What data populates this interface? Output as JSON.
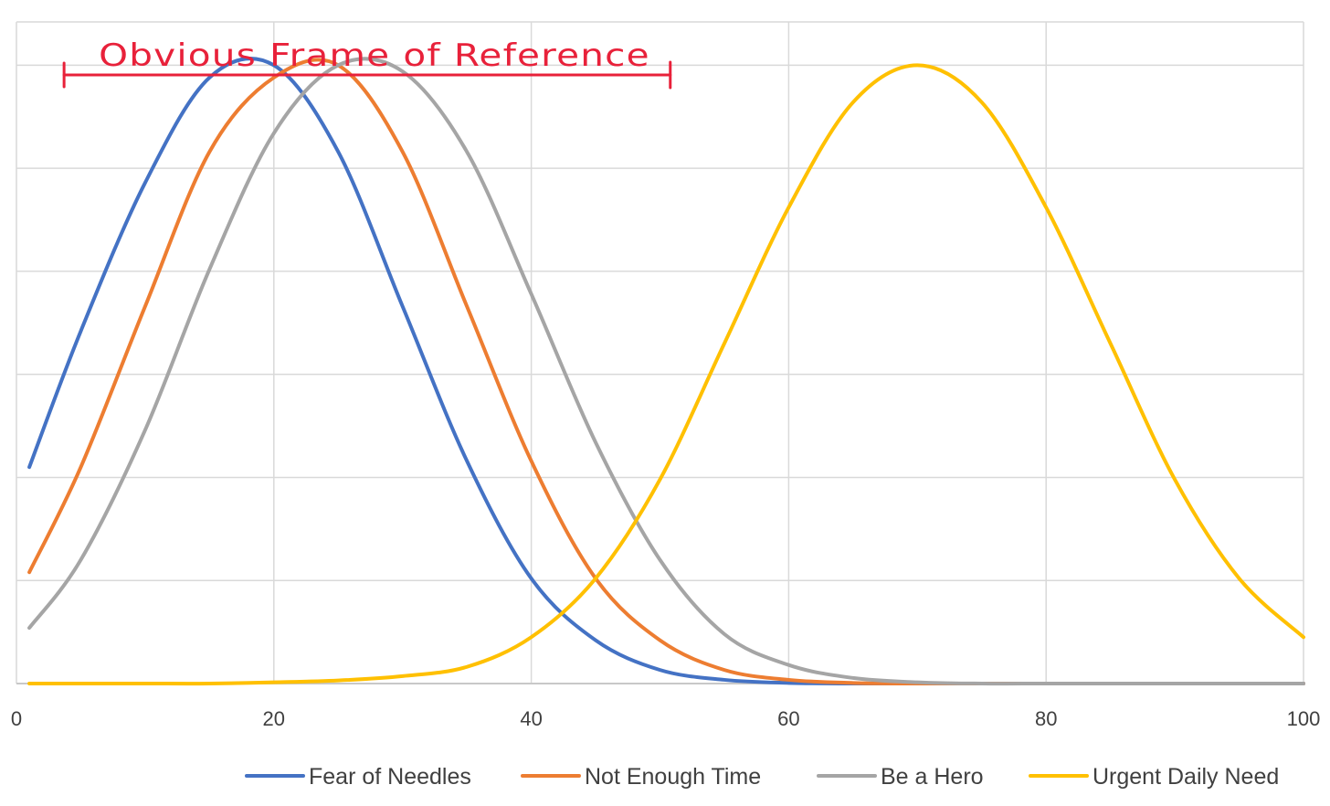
{
  "chart_data": {
    "type": "line",
    "title": "",
    "xlabel": "",
    "ylabel": "",
    "xlim": [
      0,
      100
    ],
    "ylim": [
      0,
      1.07
    ],
    "x_ticks": [
      0,
      20,
      40,
      60,
      80,
      100
    ],
    "x_tick_labels": [
      "0",
      "20",
      "40",
      "60",
      "80",
      "100"
    ],
    "y_ticks": [
      0.1667,
      0.3333,
      0.5,
      0.6667,
      0.8333,
      1.0
    ],
    "y_tick_labels_visible": false,
    "grid": true,
    "legend_position": "bottom",
    "x": [
      1,
      5,
      10,
      15,
      20,
      25,
      30,
      35,
      40,
      45,
      50,
      55,
      60,
      65,
      70,
      75,
      80,
      85,
      90,
      95,
      100
    ],
    "series": [
      {
        "name": "Fear of Needles",
        "color": "#4472c4",
        "values": [
          0.35,
          0.57,
          0.81,
          0.98,
          1.0,
          0.86,
          0.61,
          0.36,
          0.17,
          0.07,
          0.022,
          0.006,
          0.001,
          0.0,
          0.0,
          0.0,
          0.0,
          0.0,
          0.0,
          0.0,
          0.0
        ]
      },
      {
        "name": "Not Enough Time",
        "color": "#ed7d31",
        "values": [
          0.18,
          0.35,
          0.61,
          0.86,
          0.98,
          1.0,
          0.86,
          0.61,
          0.36,
          0.17,
          0.07,
          0.022,
          0.006,
          0.001,
          0.0,
          0.0,
          0.0,
          0.0,
          0.0,
          0.0,
          0.0
        ]
      },
      {
        "name": "Be a Hero",
        "color": "#a5a5a5",
        "values": [
          0.09,
          0.2,
          0.41,
          0.67,
          0.89,
          1.0,
          0.99,
          0.86,
          0.63,
          0.39,
          0.2,
          0.08,
          0.03,
          0.009,
          0.002,
          0.0,
          0.0,
          0.0,
          0.0,
          0.0,
          0.0
        ]
      },
      {
        "name": "Urgent Daily Need",
        "color": "#ffc000",
        "values": [
          0.0,
          0.0,
          0.0,
          0.0,
          0.002,
          0.005,
          0.012,
          0.027,
          0.075,
          0.17,
          0.33,
          0.55,
          0.77,
          0.94,
          1.0,
          0.94,
          0.77,
          0.55,
          0.33,
          0.17,
          0.075
        ]
      }
    ]
  },
  "annotation": {
    "text": "Obvious Frame of Reference",
    "color": "#e8213a",
    "x_start": 3.7,
    "x_end": 50.8,
    "y_level": 1.02
  }
}
